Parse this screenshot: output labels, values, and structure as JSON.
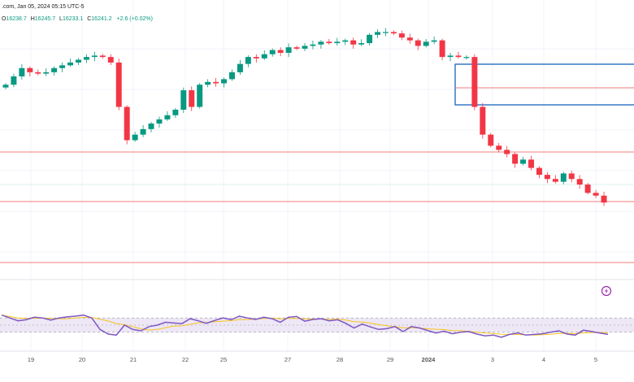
{
  "header": {
    "source": ".com, Jan 05, 2024 05:15 UTC-5",
    "o_label": "O",
    "o_value": "16238.7",
    "h_label": "H",
    "h_value": "16245.7",
    "l_label": "L",
    "l_value": "16233.1",
    "c_label": "C",
    "c_value": "16241.2",
    "change": "+2.6 (+0.02%)"
  },
  "colors": {
    "up": "#089981",
    "down": "#f23645",
    "rsi": "#7e57c2",
    "rsi_ma": "#f7c41e",
    "rsi_band": "#ede7f6",
    "hline": "#ef5350",
    "zone": "#1565c0",
    "last": "#26a69a",
    "grid": "#f0f3fa"
  },
  "chart_data": [
    {
      "type": "candlestick",
      "x_ticks": [
        "19",
        "20",
        "21",
        "22",
        "25",
        "27",
        "28",
        "29",
        "2024",
        "3",
        "4",
        "5"
      ],
      "y_range": [
        16050,
        16900
      ],
      "series": [
        {
          "values": [
            16700,
            16730,
            16760,
            16745,
            16740,
            16745,
            16760,
            16770,
            16780,
            16790,
            16800,
            16805,
            16800,
            16780,
            16620,
            16500,
            16520,
            16540,
            16560,
            16575,
            16590,
            16610,
            16680,
            16620,
            16700,
            16710,
            16705,
            16720,
            16745,
            16775,
            16800,
            16795,
            16810,
            16825,
            16815,
            16835,
            16830,
            16840,
            16845,
            16855,
            16850,
            16855,
            16860,
            16845,
            16850,
            16880,
            16890,
            16890,
            16885,
            16870,
            16860,
            16840,
            16855,
            16860,
            16800,
            16805,
            16800,
            16800,
            16620,
            16520,
            16480,
            16465,
            16450,
            16415,
            16430,
            16400,
            16375,
            16360,
            16350,
            16380,
            16360,
            16340,
            16310,
            16300,
            16275
          ]
        }
      ]
    },
    {
      "type": "line",
      "name": "",
      "y_range": [
        0,
        100
      ],
      "levels": [
        70,
        50,
        30
      ],
      "series": [
        {
          "values": [
            78,
            70,
            62,
            65,
            72,
            70,
            64,
            70,
            73,
            75,
            78,
            70,
            38,
            25,
            22,
            50,
            38,
            34,
            46,
            50,
            58,
            56,
            54,
            68,
            62,
            55,
            63,
            70,
            65,
            75,
            70,
            66,
            72,
            68,
            58,
            72,
            74,
            61,
            66,
            68,
            62,
            65,
            55,
            42,
            53,
            45,
            38,
            40,
            46,
            32,
            46,
            42,
            35,
            28,
            33,
            26,
            30,
            32,
            25,
            20,
            22,
            16,
            24,
            28,
            22,
            24,
            26,
            30,
            34,
            25,
            22,
            36,
            32,
            28,
            24
          ]
        }
      ]
    }
  ]
}
